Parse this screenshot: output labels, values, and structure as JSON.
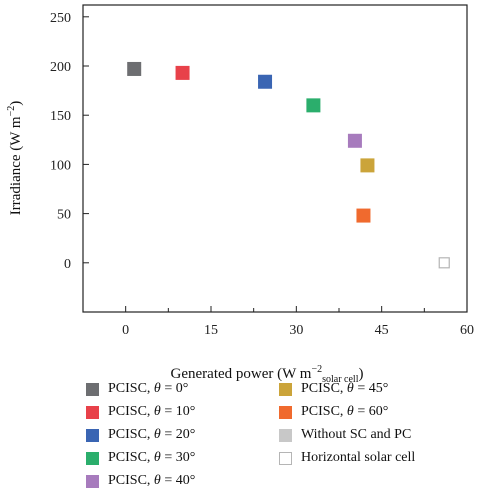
{
  "chart_data": {
    "type": "scatter",
    "xlabel_main": "Generated power (W m",
    "xlabel_sup": "−2",
    "xlabel_sub": "solar cell",
    "xlabel_close": ")",
    "ylabel": "Irradiance (W m",
    "ylabel_sup": "−2",
    "ylabel_close": ")",
    "xlim": [
      -7.5,
      60
    ],
    "ylim": [
      -50,
      262
    ],
    "xticks": [
      0,
      15,
      30,
      45,
      60
    ],
    "xticks_minor": [
      7.5,
      22.5,
      37.5,
      52.5
    ],
    "yticks": [
      0,
      50,
      100,
      150,
      200,
      250
    ],
    "grid": false,
    "legend_position": "bottom",
    "series": [
      {
        "name": "PCISC, θ = 0°",
        "prefix": "PCISC, ",
        "sym": "θ",
        "suffix": " = 0°",
        "color": "#6d6e71",
        "hollow": false,
        "x": 1.5,
        "y": 197
      },
      {
        "name": "PCISC, θ = 10°",
        "prefix": "PCISC, ",
        "sym": "θ",
        "suffix": " = 10°",
        "color": "#e8414a",
        "hollow": false,
        "x": 10.0,
        "y": 193
      },
      {
        "name": "PCISC, θ = 20°",
        "prefix": "PCISC, ",
        "sym": "θ",
        "suffix": " = 20°",
        "color": "#3a65b3",
        "hollow": false,
        "x": 24.5,
        "y": 184
      },
      {
        "name": "PCISC, θ = 30°",
        "prefix": "PCISC, ",
        "sym": "θ",
        "suffix": " = 30°",
        "color": "#2bae6c",
        "hollow": false,
        "x": 33.0,
        "y": 160
      },
      {
        "name": "PCISC, θ = 40°",
        "prefix": "PCISC, ",
        "sym": "θ",
        "suffix": " = 40°",
        "color": "#a77bbd",
        "hollow": false,
        "x": 40.3,
        "y": 124
      },
      {
        "name": "PCISC, θ = 45°",
        "prefix": "PCISC, ",
        "sym": "θ",
        "suffix": " = 45°",
        "color": "#cba43a",
        "hollow": false,
        "x": 42.5,
        "y": 99
      },
      {
        "name": "PCISC, θ = 60°",
        "prefix": "PCISC, ",
        "sym": "θ",
        "suffix": " = 60°",
        "color": "#f06a2e",
        "hollow": false,
        "x": 41.8,
        "y": 48
      },
      {
        "name": "Without SC and PC",
        "prefix": "Without SC and PC",
        "sym": "",
        "suffix": "",
        "color": "#c8c8c8",
        "hollow": false,
        "x": null,
        "y": null
      },
      {
        "name": "Horizontal solar cell",
        "prefix": "Horizontal solar cell",
        "sym": "",
        "suffix": "",
        "color": "#b5b5b5",
        "hollow": true,
        "x": 56.0,
        "y": 0
      }
    ]
  }
}
